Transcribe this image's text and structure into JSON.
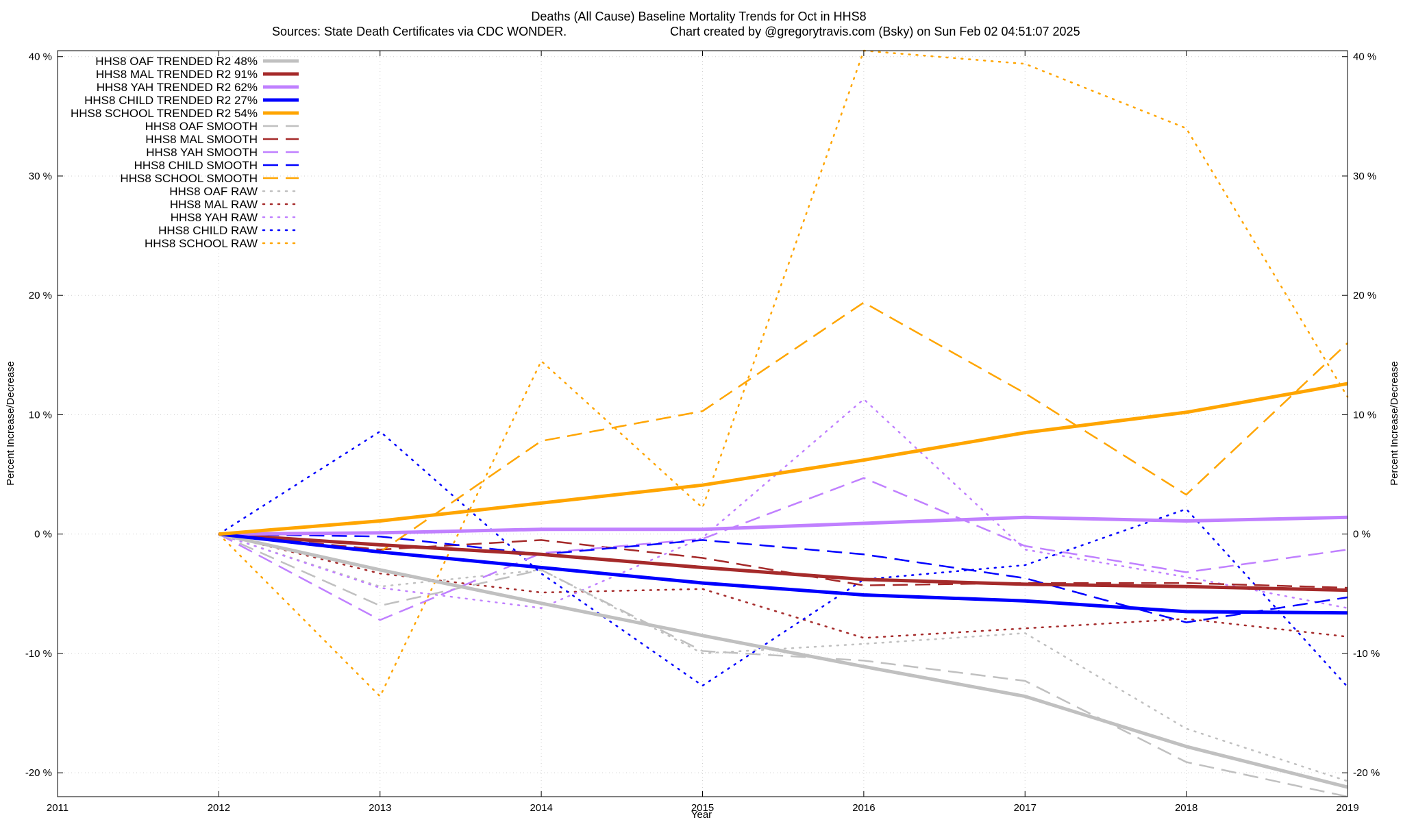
{
  "chart_data": {
    "type": "line",
    "title": "Deaths (All Cause)  Baseline Mortality Trends for Oct in HHS8",
    "subtitle_left": "Sources: State Death Certificates via CDC WONDER.",
    "subtitle_right": "Chart created by @gregorytravis.com (Bsky) on Sun Feb 02 04:51:07 2025",
    "xlabel": "Year",
    "ylabel": "Percent Increase/Decrease",
    "y2label": "Percent Increase/Decrease",
    "xlim": [
      2011,
      2019
    ],
    "ylim": [
      -22,
      40.5
    ],
    "x_ticks": [
      2011,
      2012,
      2013,
      2014,
      2015,
      2016,
      2017,
      2018,
      2019
    ],
    "y_ticks": [
      -20,
      -10,
      0,
      10,
      20,
      30,
      40
    ],
    "y_tick_labels": [
      "-20 %",
      "-10 %",
      "0 %",
      "10 %",
      "20 %",
      "30 %",
      "40 %"
    ],
    "grid": true,
    "legend_position": "top-left",
    "x": [
      2012,
      2013,
      2014,
      2015,
      2016,
      2017,
      2018,
      2019
    ],
    "series": [
      {
        "name": "HHS8 OAF TRENDED R2  48%",
        "color": "#c0c0c0",
        "style": "solid",
        "values": [
          0,
          -3.0,
          -5.8,
          -8.5,
          -11.1,
          -13.6,
          -17.8,
          -21.2
        ]
      },
      {
        "name": "HHS8 MAL TRENDED R2  91%",
        "color": "#a52a2a",
        "style": "solid",
        "values": [
          0,
          -0.9,
          -1.7,
          -2.8,
          -3.8,
          -4.2,
          -4.4,
          -4.7
        ]
      },
      {
        "name": "HHS8 YAH TRENDED R2  62%",
        "color": "#c080ff",
        "style": "solid",
        "values": [
          0,
          0.1,
          0.4,
          0.4,
          0.9,
          1.4,
          1.1,
          1.4
        ]
      },
      {
        "name": "HHS8 CHILD TRENDED R2  27%",
        "color": "#0000ff",
        "style": "solid",
        "values": [
          0,
          -1.5,
          -2.8,
          -4.1,
          -5.1,
          -5.6,
          -6.5,
          -6.6
        ]
      },
      {
        "name": "HHS8 SCHOOL TRENDED R2  54%",
        "color": "#ffa500",
        "style": "solid",
        "values": [
          0,
          1.1,
          2.6,
          4.1,
          6.2,
          8.5,
          10.2,
          12.6
        ]
      },
      {
        "name": "HHS8 OAF SMOOTH",
        "color": "#c0c0c0",
        "style": "dashed",
        "values": [
          0,
          -6.0,
          -3.0,
          -9.8,
          -10.6,
          -12.3,
          -19.1,
          -22.0
        ]
      },
      {
        "name": "HHS8 MAL SMOOTH",
        "color": "#a52a2a",
        "style": "dashed",
        "values": [
          0,
          -1.3,
          -0.5,
          -2.0,
          -4.3,
          -4.1,
          -4.1,
          -4.5
        ]
      },
      {
        "name": "HHS8 YAH SMOOTH",
        "color": "#c080ff",
        "style": "dashed",
        "values": [
          0,
          -7.2,
          -1.6,
          -0.4,
          4.7,
          -1.0,
          -3.2,
          -1.3
        ]
      },
      {
        "name": "HHS8 CHILD SMOOTH",
        "color": "#0000ff",
        "style": "dashed",
        "values": [
          0,
          -0.2,
          -1.7,
          -0.5,
          -1.7,
          -3.7,
          -7.4,
          -5.3
        ]
      },
      {
        "name": "HHS8 SCHOOL SMOOTH",
        "color": "#ffa500",
        "style": "dashed",
        "values": [
          0,
          -1.5,
          7.8,
          10.3,
          19.4,
          11.8,
          3.3,
          16.0
        ]
      },
      {
        "name": "HHS8 OAF RAW",
        "color": "#c0c0c0",
        "style": "dotted",
        "values": [
          0,
          -4.4,
          -3.0,
          -10.0,
          -9.2,
          -8.3,
          -16.3,
          -20.7
        ]
      },
      {
        "name": "HHS8 MAL RAW",
        "color": "#a52a2a",
        "style": "dotted",
        "values": [
          0,
          -3.3,
          -4.9,
          -4.6,
          -8.7,
          -7.9,
          -7.1,
          -8.6
        ]
      },
      {
        "name": "HHS8 YAH RAW",
        "color": "#c080ff",
        "style": "dotted",
        "values": [
          0,
          -4.5,
          -6.2,
          -0.3,
          11.3,
          -1.3,
          -3.6,
          -6.2
        ]
      },
      {
        "name": "HHS8 CHILD RAW",
        "color": "#0000ff",
        "style": "dotted",
        "values": [
          0,
          8.6,
          -3.3,
          -12.7,
          -3.8,
          -2.6,
          2.1,
          -12.8
        ]
      },
      {
        "name": "HHS8 SCHOOL RAW",
        "color": "#ffa500",
        "style": "dotted",
        "values": [
          0,
          -13.6,
          14.5,
          2.2,
          40.5,
          39.4,
          34.0,
          11.5
        ]
      }
    ]
  }
}
